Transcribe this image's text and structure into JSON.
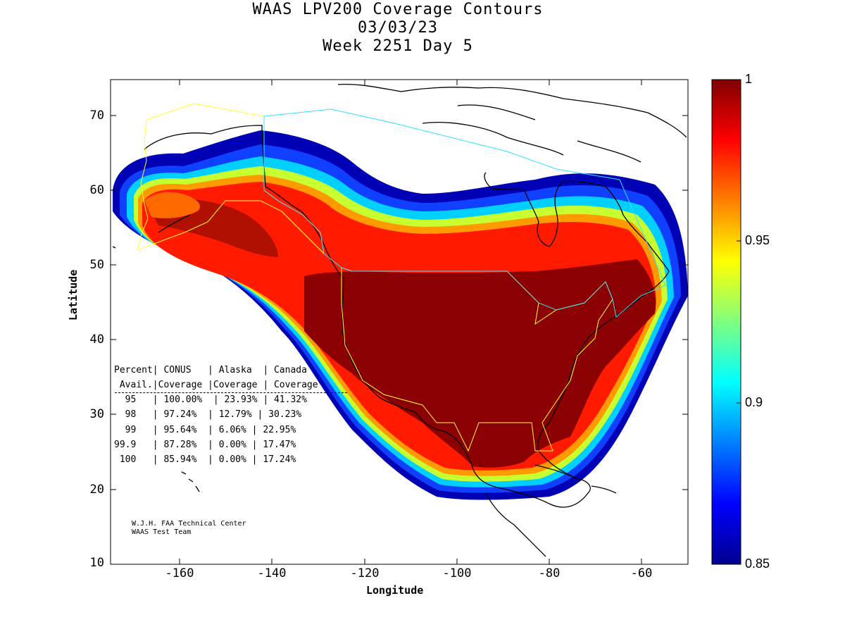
{
  "title": {
    "line1": "WAAS LPV200 Coverage Contours",
    "line2": "03/03/23",
    "line3": "Week 2251 Day 5"
  },
  "axes": {
    "xlabel": "Longitude",
    "ylabel": "Latitude",
    "xlim": [
      -175,
      -50
    ],
    "ylim": [
      10,
      75
    ],
    "xticks": [
      "-160",
      "-140",
      "-120",
      "-100",
      "-80",
      "-60"
    ],
    "yticks": [
      "70",
      "60",
      "50",
      "40",
      "30",
      "20",
      "10"
    ]
  },
  "colorbar": {
    "min": 0.85,
    "max": 1.0,
    "ticks": [
      "1",
      "0.95",
      "0.9",
      "0.85"
    ],
    "colormap": "jet"
  },
  "stats_table": {
    "header1": "Percent| CONUS   | Alaska  | Canada",
    "header2": " Avail.|Coverage |Coverage | Coverage",
    "rows": [
      "  95   | 100.00%  | 23.93% | 41.32%",
      "  98   | 97.24%  | 12.79% | 30.23%",
      "  99   | 95.64%  | 6.06% | 22.95%",
      "99.9   | 87.28%  | 0.00% | 17.47%",
      " 100   | 85.94%  | 0.00% | 17.24%"
    ]
  },
  "credit": {
    "line1": "W.J.H. FAA Technical Center",
    "line2": "WAAS Test Team"
  },
  "colors": {
    "coastline": "#000000",
    "conus_alaska_boundary": "#ffff33",
    "canada_boundary": "#33e0ff"
  },
  "chart_data": {
    "type": "heatmap",
    "quantity": "LPV200 availability",
    "scale_min": 0.85,
    "scale_max": 1.0,
    "regions": [
      {
        "region": "CONUS",
        "percent_avail": [
          95,
          98,
          99,
          99.9,
          100
        ],
        "coverage_pct": [
          100.0,
          97.24,
          95.64,
          87.28,
          85.94
        ]
      },
      {
        "region": "Alaska",
        "percent_avail": [
          95,
          98,
          99,
          99.9,
          100
        ],
        "coverage_pct": [
          23.93,
          12.79,
          6.06,
          0.0,
          0.0
        ]
      },
      {
        "region": "Canada",
        "percent_avail": [
          95,
          98,
          99,
          99.9,
          100
        ],
        "coverage_pct": [
          41.32,
          30.23,
          22.95,
          17.47,
          17.24
        ]
      }
    ]
  }
}
